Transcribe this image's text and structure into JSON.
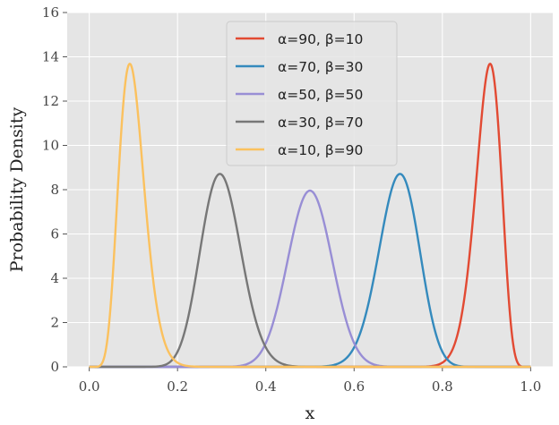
{
  "chart_data": {
    "type": "line",
    "title": "",
    "xlabel": "x",
    "ylabel": "Probability Density",
    "xlim": [
      -0.05,
      1.05
    ],
    "ylim": [
      0,
      16
    ],
    "xticks": [
      "0.0",
      "0.2",
      "0.4",
      "0.6",
      "0.8",
      "1.0"
    ],
    "yticks": [
      "0",
      "2",
      "4",
      "6",
      "8",
      "10",
      "12",
      "14",
      "16"
    ],
    "grid": true,
    "legend_position": "top-center",
    "background": "#e5e5e5",
    "series": [
      {
        "name": "α=90, β=10",
        "alpha": 90,
        "beta": 10,
        "color": "#e24a33",
        "peak": 13.7
      },
      {
        "name": "α=70, β=30",
        "alpha": 70,
        "beta": 30,
        "color": "#348abd",
        "peak": 8.7
      },
      {
        "name": "α=50, β=50",
        "alpha": 50,
        "beta": 50,
        "color": "#988ed5",
        "peak": 7.96
      },
      {
        "name": "α=30, β=70",
        "alpha": 30,
        "beta": 70,
        "color": "#777777",
        "peak": 8.7
      },
      {
        "name": "α=10, β=90",
        "alpha": 10,
        "beta": 90,
        "color": "#fbc15e",
        "peak": 13.7
      }
    ]
  }
}
